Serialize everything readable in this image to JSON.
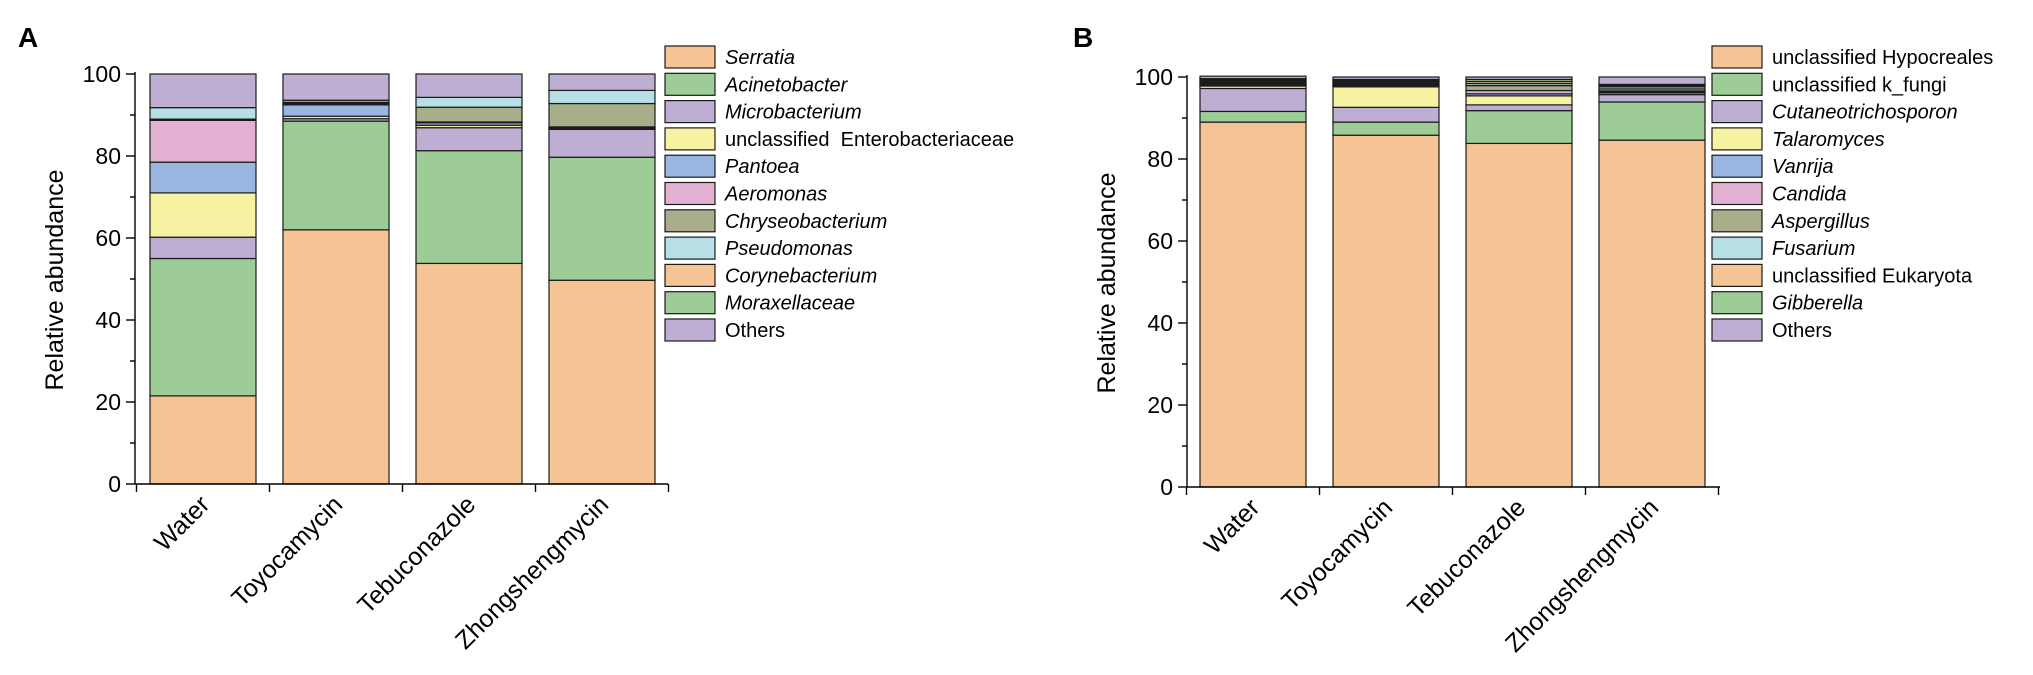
{
  "chart_data": [
    {
      "panel": "A",
      "type": "bar",
      "stacked": true,
      "ylabel": "Relative abundance",
      "ylim": [
        0,
        100
      ],
      "yticks": [
        0,
        20,
        40,
        60,
        80,
        100
      ],
      "categories": [
        "Water",
        "Toyocamycin",
        "Tebuconazole",
        "Zhongshengmycin"
      ],
      "series": [
        {
          "name": "Moraxellaceae",
          "italic": true,
          "color": "#9dcc96",
          "values": [
            0,
            0,
            0,
            0
          ]
        },
        {
          "name": "Corynebacterium",
          "italic": true,
          "color": "#f6c394",
          "values": [
            0,
            0,
            0,
            0
          ]
        },
        {
          "name": "Serratia",
          "italic": true,
          "color": "#f6c394",
          "values": [
            21.5,
            62.0,
            53.8,
            49.7
          ]
        },
        {
          "name": "Acinetobacter",
          "italic": true,
          "color": "#9dcc96",
          "values": [
            33.5,
            26.5,
            27.5,
            30.0
          ]
        },
        {
          "name": "Microbacterium",
          "italic": true,
          "color": "#bfaed3",
          "values": [
            5.2,
            0.6,
            5.6,
            6.8
          ]
        },
        {
          "name": "unclassified  Enterobacteriaceae",
          "italic": false,
          "color": "#f6f2a2",
          "values": [
            10.8,
            0.6,
            0.6,
            0.2
          ]
        },
        {
          "name": "Pantoea",
          "italic": true,
          "color": "#98b6e0",
          "values": [
            7.5,
            2.8,
            0.6,
            0.2
          ]
        },
        {
          "name": "Aeromonas",
          "italic": true,
          "color": "#e2b1d2",
          "values": [
            10.2,
            0.3,
            0.2,
            0.2
          ]
        },
        {
          "name": "Chryseobacterium",
          "italic": true,
          "color": "#a8ad8a",
          "values": [
            0.3,
            0.3,
            3.6,
            5.7
          ]
        },
        {
          "name": "Pseudomonas",
          "italic": true,
          "color": "#b7dfe6",
          "values": [
            2.8,
            0.5,
            2.4,
            3.2
          ]
        },
        {
          "name": "Others",
          "italic": false,
          "color": "#bfaed3",
          "values": [
            8.2,
            6.4,
            5.7,
            4.0
          ]
        }
      ],
      "legend": [
        "Serratia",
        "Acinetobacter",
        "Microbacterium",
        "unclassified  Enterobacteriaceae",
        "Pantoea",
        "Aeromonas",
        "Chryseobacterium",
        "Pseudomonas",
        "Corynebacterium",
        "Moraxellaceae",
        "Others"
      ]
    },
    {
      "panel": "B",
      "type": "bar",
      "stacked": true,
      "ylabel": "Relative abundance",
      "ylim": [
        0,
        100
      ],
      "yticks": [
        0,
        20,
        40,
        60,
        80,
        100
      ],
      "categories": [
        "Water",
        "Toyocamycin",
        "Tebuconazole",
        "Zhongshengmycin"
      ],
      "series": [
        {
          "name": "unclassified Hypocreales",
          "italic": false,
          "color": "#f6c394",
          "values": [
            89.0,
            85.8,
            83.8,
            84.6
          ]
        },
        {
          "name": "unclassified k_fungi",
          "italic": false,
          "color": "#9dcc96",
          "values": [
            2.6,
            3.2,
            8.0,
            9.3
          ]
        },
        {
          "name": "Cutaneotrichosporon",
          "italic": true,
          "color": "#bfaed3",
          "values": [
            5.6,
            3.6,
            1.4,
            1.8
          ]
        },
        {
          "name": "Talaromyces",
          "italic": true,
          "color": "#f6f2a2",
          "values": [
            0.6,
            5.0,
            2.2,
            0.4
          ]
        },
        {
          "name": "Vanrija",
          "italic": true,
          "color": "#98b6e0",
          "values": [
            0.3,
            0.3,
            0.5,
            0.2
          ]
        },
        {
          "name": "Candida",
          "italic": true,
          "color": "#e2b1d2",
          "values": [
            0.3,
            0.3,
            0.8,
            0.3
          ]
        },
        {
          "name": "Aspergillus",
          "italic": true,
          "color": "#a8ad8a",
          "values": [
            0.3,
            0.3,
            1.2,
            0.5
          ]
        },
        {
          "name": "Fusarium",
          "italic": true,
          "color": "#b7dfe6",
          "values": [
            0.3,
            0.3,
            0.5,
            0.5
          ]
        },
        {
          "name": "unclassified Eukaryota",
          "italic": false,
          "color": "#f6c394",
          "values": [
            0.3,
            0.3,
            0.5,
            0.3
          ]
        },
        {
          "name": "Gibberella",
          "italic": true,
          "color": "#9dcc96",
          "values": [
            0.3,
            0.3,
            0.5,
            0.3
          ]
        },
        {
          "name": "Others",
          "italic": false,
          "color": "#bfaed3",
          "values": [
            0.6,
            0.6,
            0.6,
            1.8
          ]
        }
      ],
      "legend": [
        "unclassified Hypocreales",
        "unclassified k_fungi",
        "Cutaneotrichosporon",
        "Talaromyces",
        "Vanrija",
        "Candida",
        "Aspergillus",
        "Fusarium",
        "unclassified Eukaryota",
        "Gibberella",
        "Others"
      ]
    }
  ]
}
